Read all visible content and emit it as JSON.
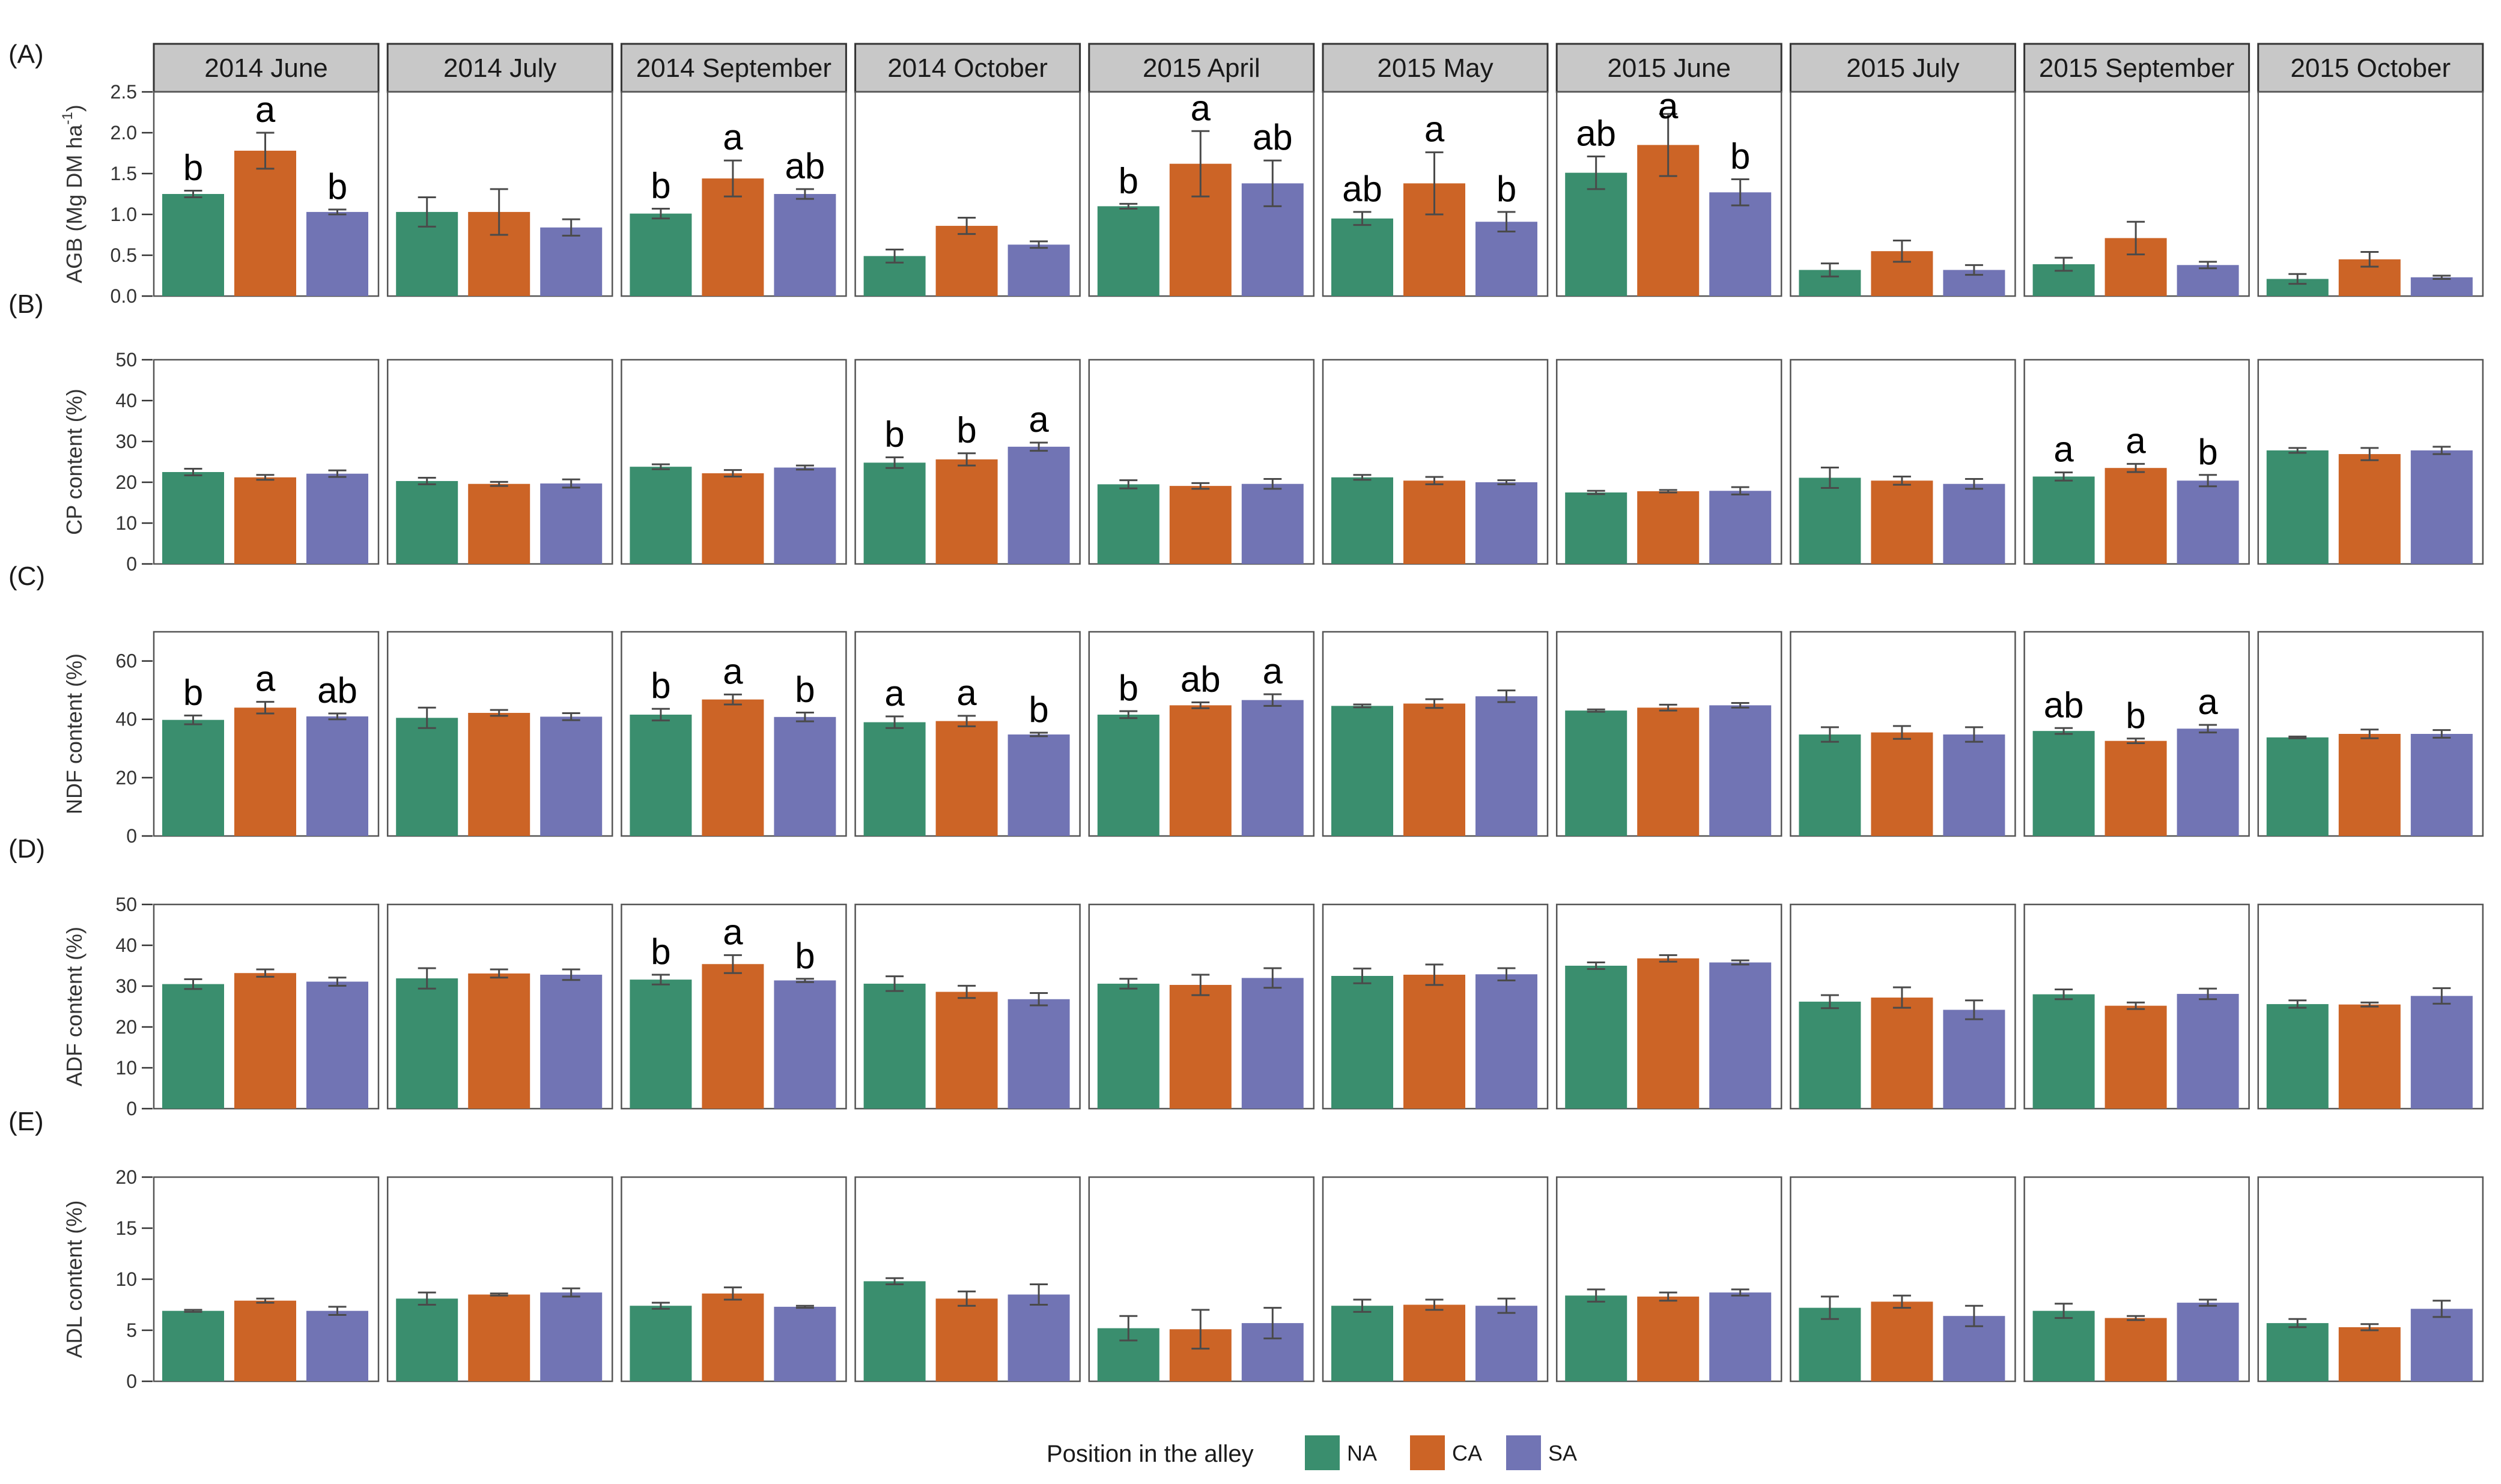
{
  "chart_data": {
    "type": "bar",
    "legend": {
      "title": "Position in the alley",
      "position": "bottom",
      "items": [
        {
          "name": "NA",
          "color": "#3a8e6e"
        },
        {
          "name": "CA",
          "color": "#cc6426"
        },
        {
          "name": "SA",
          "color": "#7174b4"
        }
      ]
    },
    "facets": [
      "2014 June",
      "2014 July",
      "2014 September",
      "2014 October",
      "2015 April",
      "2015 May",
      "2015 June",
      "2015 July",
      "2015 September",
      "2015 October"
    ],
    "series_names": [
      "NA",
      "CA",
      "SA"
    ],
    "panels": [
      {
        "tag": "(A)",
        "ylabel": "AGB (Mg DM ha",
        "ylabel_sup": "-1",
        "ylabel_end": ")",
        "ylim": [
          0,
          2.5
        ],
        "ticks": [
          0.0,
          0.5,
          1.0,
          1.5,
          2.0,
          2.5
        ],
        "tick_labels": [
          "0.0",
          "0.5",
          "1.0",
          "1.5",
          "2.0",
          "2.5"
        ],
        "values": [
          [
            1.25,
            1.78,
            1.03
          ],
          [
            1.03,
            1.03,
            0.84
          ],
          [
            1.01,
            1.44,
            1.25
          ],
          [
            0.49,
            0.86,
            0.63
          ],
          [
            1.1,
            1.62,
            1.38
          ],
          [
            0.95,
            1.38,
            0.91
          ],
          [
            1.51,
            1.85,
            1.27
          ],
          [
            0.32,
            0.55,
            0.32
          ],
          [
            0.39,
            0.71,
            0.38
          ],
          [
            0.21,
            0.45,
            0.23
          ]
        ],
        "errors": [
          [
            0.04,
            0.22,
            0.03
          ],
          [
            0.18,
            0.28,
            0.1
          ],
          [
            0.06,
            0.22,
            0.06
          ],
          [
            0.08,
            0.1,
            0.04
          ],
          [
            0.03,
            0.4,
            0.28
          ],
          [
            0.08,
            0.38,
            0.12
          ],
          [
            0.2,
            0.38,
            0.16
          ],
          [
            0.08,
            0.13,
            0.06
          ],
          [
            0.08,
            0.2,
            0.04
          ],
          [
            0.06,
            0.09,
            0.02
          ]
        ],
        "letters": [
          [
            "b",
            "a",
            "b"
          ],
          null,
          [
            "b",
            "a",
            "ab"
          ],
          null,
          [
            "b",
            "a",
            "ab"
          ],
          [
            "ab",
            "a",
            "b"
          ],
          [
            "ab",
            "a",
            "b"
          ],
          null,
          null,
          null
        ]
      },
      {
        "tag": "(B)",
        "ylabel": "CP content (%)",
        "ylabel_sup": "",
        "ylabel_end": "",
        "ylim": [
          0,
          50
        ],
        "ticks": [
          0,
          10,
          20,
          30,
          40,
          50
        ],
        "tick_labels": [
          "0",
          "10",
          "20",
          "30",
          "40",
          "50"
        ],
        "values": [
          [
            22.5,
            21.2,
            22.1
          ],
          [
            20.3,
            19.6,
            19.7
          ],
          [
            23.8,
            22.2,
            23.6
          ],
          [
            24.8,
            25.6,
            28.7
          ],
          [
            19.5,
            19.1,
            19.6
          ],
          [
            21.2,
            20.4,
            20.0
          ],
          [
            17.5,
            17.8,
            17.9
          ],
          [
            21.1,
            20.4,
            19.6
          ],
          [
            21.4,
            23.5,
            20.4
          ],
          [
            27.8,
            26.9,
            27.8
          ]
        ],
        "errors": [
          [
            0.8,
            0.6,
            0.8
          ],
          [
            0.8,
            0.5,
            1.0
          ],
          [
            0.6,
            0.8,
            0.5
          ],
          [
            1.3,
            1.5,
            1.0
          ],
          [
            1.0,
            0.7,
            1.2
          ],
          [
            0.6,
            0.9,
            0.5
          ],
          [
            0.4,
            0.3,
            0.9
          ],
          [
            2.5,
            1.0,
            1.2
          ],
          [
            1.0,
            1.0,
            1.4
          ],
          [
            0.6,
            1.5,
            0.9
          ]
        ],
        "letters": [
          null,
          null,
          null,
          [
            "b",
            "b",
            "a"
          ],
          null,
          null,
          null,
          null,
          [
            "a",
            "a",
            "b"
          ],
          null
        ]
      },
      {
        "tag": "(C)",
        "ylabel": "NDF content (%)",
        "ylabel_sup": "",
        "ylabel_end": "",
        "ylim": [
          0,
          70
        ],
        "ticks": [
          0,
          20,
          40,
          60
        ],
        "tick_labels": [
          "0",
          "20",
          "40",
          "60"
        ],
        "values": [
          [
            39.8,
            44.0,
            41.0
          ],
          [
            40.5,
            42.2,
            40.9
          ],
          [
            41.6,
            46.8,
            40.8
          ],
          [
            39.0,
            39.4,
            34.8
          ],
          [
            41.6,
            44.8,
            46.6
          ],
          [
            44.6,
            45.4,
            47.9
          ],
          [
            43.0,
            44.0,
            44.8
          ],
          [
            34.8,
            35.5,
            34.8
          ],
          [
            36.0,
            32.6,
            36.8
          ],
          [
            33.8,
            35.0,
            35.0
          ]
        ],
        "errors": [
          [
            1.5,
            2.0,
            1.0
          ],
          [
            3.5,
            1.0,
            1.2
          ],
          [
            2.0,
            1.7,
            1.5
          ],
          [
            2.0,
            1.8,
            0.6
          ],
          [
            1.2,
            1.0,
            2.0
          ],
          [
            0.5,
            1.5,
            2.0
          ],
          [
            0.4,
            1.0,
            0.8
          ],
          [
            2.5,
            2.2,
            2.5
          ],
          [
            1.0,
            0.8,
            1.3
          ],
          [
            0.3,
            1.5,
            1.3
          ]
        ],
        "letters": [
          [
            "b",
            "a",
            "ab"
          ],
          null,
          [
            "b",
            "a",
            "b"
          ],
          [
            "a",
            "a",
            "b"
          ],
          [
            "b",
            "ab",
            "a"
          ],
          null,
          null,
          null,
          [
            "ab",
            "b",
            "a"
          ],
          null
        ]
      },
      {
        "tag": "(D)",
        "ylabel": "ADF content (%)",
        "ylabel_sup": "",
        "ylabel_end": "",
        "ylim": [
          0,
          50
        ],
        "ticks": [
          0,
          10,
          20,
          30,
          40,
          50
        ],
        "tick_labels": [
          "0",
          "10",
          "20",
          "30",
          "40",
          "50"
        ],
        "values": [
          [
            30.5,
            33.2,
            31.1
          ],
          [
            31.9,
            33.1,
            32.8
          ],
          [
            31.6,
            35.4,
            31.4
          ],
          [
            30.6,
            28.6,
            26.8
          ],
          [
            30.6,
            30.3,
            32.0
          ],
          [
            32.5,
            32.8,
            32.9
          ],
          [
            35.0,
            36.8,
            35.8
          ],
          [
            26.2,
            27.2,
            24.2
          ],
          [
            28.0,
            25.2,
            28.1
          ],
          [
            25.6,
            25.5,
            27.6
          ]
        ],
        "errors": [
          [
            1.2,
            0.9,
            1.0
          ],
          [
            2.5,
            1.0,
            1.3
          ],
          [
            1.2,
            2.2,
            0.4
          ],
          [
            1.8,
            1.5,
            1.5
          ],
          [
            1.2,
            2.5,
            2.4
          ],
          [
            1.8,
            2.5,
            1.5
          ],
          [
            0.8,
            0.8,
            0.5
          ],
          [
            1.6,
            2.5,
            2.3
          ],
          [
            1.2,
            0.8,
            1.3
          ],
          [
            0.9,
            0.5,
            1.9
          ]
        ],
        "letters": [
          null,
          null,
          [
            "b",
            "a",
            "b"
          ],
          null,
          null,
          null,
          null,
          null,
          null,
          null
        ]
      },
      {
        "tag": "(E)",
        "ylabel": "ADL content (%)",
        "ylabel_sup": "",
        "ylabel_end": "",
        "ylim": [
          0,
          20
        ],
        "ticks": [
          0,
          5,
          10,
          15,
          20
        ],
        "tick_labels": [
          "0",
          "5",
          "10",
          "15",
          "20"
        ],
        "values": [
          [
            6.9,
            7.9,
            6.9
          ],
          [
            8.1,
            8.5,
            8.7
          ],
          [
            7.4,
            8.6,
            7.3
          ],
          [
            9.8,
            8.1,
            8.5
          ],
          [
            5.2,
            5.1,
            5.7
          ],
          [
            7.4,
            7.5,
            7.4
          ],
          [
            8.4,
            8.3,
            8.7
          ],
          [
            7.2,
            7.8,
            6.4
          ],
          [
            6.9,
            6.2,
            7.7
          ],
          [
            5.7,
            5.3,
            7.1
          ]
        ],
        "errors": [
          [
            0.1,
            0.2,
            0.4
          ],
          [
            0.6,
            0.1,
            0.4
          ],
          [
            0.3,
            0.6,
            0.1
          ],
          [
            0.3,
            0.7,
            1.0
          ],
          [
            1.2,
            1.9,
            1.5
          ],
          [
            0.6,
            0.5,
            0.7
          ],
          [
            0.6,
            0.4,
            0.3
          ],
          [
            1.1,
            0.6,
            1.0
          ],
          [
            0.7,
            0.2,
            0.3
          ],
          [
            0.4,
            0.3,
            0.8
          ]
        ],
        "letters": [
          null,
          null,
          null,
          null,
          null,
          null,
          null,
          null,
          null,
          null
        ]
      }
    ]
  }
}
